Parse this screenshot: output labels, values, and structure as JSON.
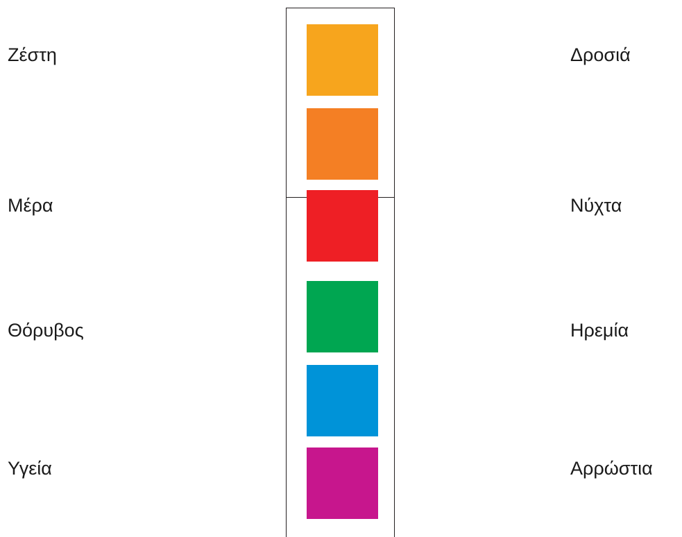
{
  "left_words": [
    "Ζέστη",
    "Μέρα",
    "Θόρυβος",
    "Υγεία"
  ],
  "right_words": [
    "Δροσιά",
    "Νύχτα",
    "Ηρεμία",
    "Αρρώστια"
  ],
  "swatches": [
    {
      "name": "yellow-orange",
      "color": "#f7a51d"
    },
    {
      "name": "orange",
      "color": "#f47f24"
    },
    {
      "name": "red",
      "color": "#ee1f25"
    },
    {
      "name": "green",
      "color": "#00a651"
    },
    {
      "name": "blue",
      "color": "#0093d8"
    },
    {
      "name": "magenta",
      "color": "#c7168d"
    }
  ]
}
